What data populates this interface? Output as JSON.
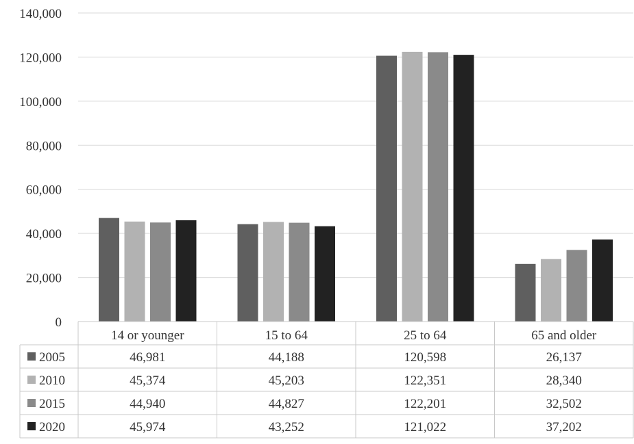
{
  "chart_data": {
    "type": "bar",
    "title": "",
    "xlabel": "",
    "ylabel": "",
    "categories": [
      "14 or younger",
      "15 to 64",
      "25 to 64",
      "65 and older"
    ],
    "ylim": [
      0,
      140000
    ],
    "yticks": [
      "0",
      "20,000",
      "40,000",
      "60,000",
      "80,000",
      "100,000",
      "120,000",
      "140,000"
    ],
    "yticks_values": [
      0,
      20000,
      40000,
      60000,
      80000,
      100000,
      120000,
      140000
    ],
    "grid": true,
    "legend_placement": "data-table",
    "series": [
      {
        "name": "2005",
        "color": "#5f5f5f",
        "values": [
          46981,
          44188,
          120598,
          26137
        ],
        "labels": [
          "46,981",
          "44,188",
          "120,598",
          "26,137"
        ]
      },
      {
        "name": "2010",
        "color": "#b2b2b2",
        "values": [
          45374,
          45203,
          122351,
          28340
        ],
        "labels": [
          "45,374",
          "45,203",
          "122,351",
          "28,340"
        ]
      },
      {
        "name": "2015",
        "color": "#8a8a8a",
        "values": [
          44940,
          44827,
          122201,
          32502
        ],
        "labels": [
          "44,940",
          "44,827",
          "122,201",
          "32,502"
        ]
      },
      {
        "name": "2020",
        "color": "#222222",
        "values": [
          45974,
          43252,
          121022,
          37202
        ],
        "labels": [
          "45,974",
          "43,252",
          "121,022",
          "37,202"
        ]
      }
    ]
  }
}
